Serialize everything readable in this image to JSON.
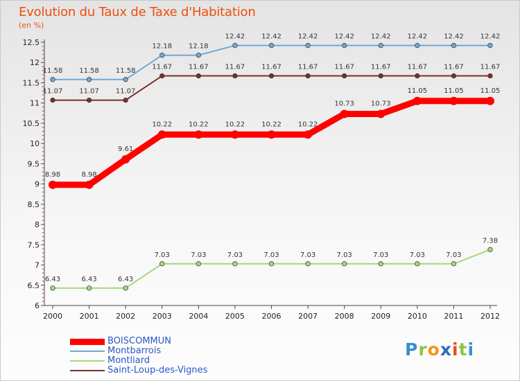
{
  "chart_data": {
    "type": "line",
    "title": "Evolution du Taux de Taxe d'Habitation",
    "subtitle": "(en %)",
    "xlabel": "",
    "ylabel": "",
    "ylim": [
      6,
      12.5
    ],
    "yticks": [
      "6",
      "6.5",
      "7",
      "7.5",
      "8",
      "8.5",
      "9",
      "9.5",
      "10",
      "10.5",
      "11",
      "11.5",
      "12",
      "12.5"
    ],
    "categories": [
      "2000",
      "2001",
      "2002",
      "2003",
      "2004",
      "2005",
      "2006",
      "2007",
      "2008",
      "2009",
      "2010",
      "2011",
      "2012"
    ],
    "series": [
      {
        "name": "BOISCOMMUN",
        "color": "#ff0000",
        "values": [
          8.98,
          8.98,
          9.61,
          10.22,
          10.22,
          10.22,
          10.22,
          10.22,
          10.73,
          10.73,
          11.05,
          11.05,
          11.05
        ]
      },
      {
        "name": "Montbarrois",
        "color": "#6fa8d6",
        "values": [
          11.58,
          11.58,
          11.58,
          12.18,
          12.18,
          12.42,
          12.42,
          12.42,
          12.42,
          12.42,
          12.42,
          12.42,
          12.42
        ]
      },
      {
        "name": "Montliard",
        "color": "#a6d87a",
        "values": [
          6.43,
          6.43,
          6.43,
          7.03,
          7.03,
          7.03,
          7.03,
          7.03,
          7.03,
          7.03,
          7.03,
          7.03,
          7.38
        ]
      },
      {
        "name": "Saint-Loup-des-Vignes",
        "color": "#7a2e2e",
        "values": [
          11.07,
          11.07,
          11.07,
          11.67,
          11.67,
          11.67,
          11.67,
          11.67,
          11.67,
          11.67,
          11.67,
          11.67,
          11.67
        ]
      }
    ],
    "legend_position": "bottom-left",
    "grid": false
  },
  "brand": {
    "letters": [
      "P",
      "r",
      "o",
      "x",
      "i",
      "t",
      "i"
    ],
    "colors": [
      "#3a8fd1",
      "#8cc63f",
      "#f7941d",
      "#2e6fb5",
      "#e94e1b",
      "#8cc63f",
      "#3a8fd1"
    ]
  }
}
